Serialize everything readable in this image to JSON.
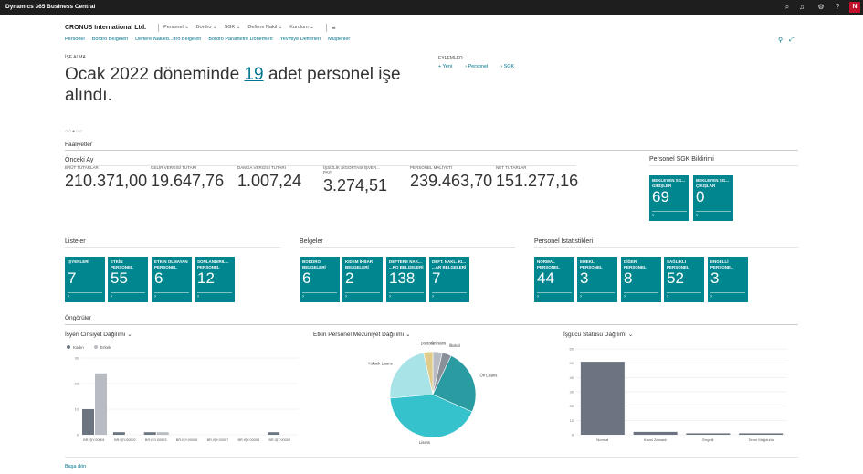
{
  "app": {
    "title": "Dynamics 365 Business Central",
    "avatar": "N"
  },
  "nav": {
    "company": "CRONUS International Ltd.",
    "items": [
      "Personel",
      "Bordro",
      "SGK",
      "Deftere Nakil",
      "Kurulum"
    ]
  },
  "links": [
    "Personel",
    "Bordro Belgeleri",
    "Deftere Nakled...dro Belgeleri",
    "Bordro Parametre Dönemleri",
    "Yevmiye Defterleri",
    "Müşteriler"
  ],
  "headline": {
    "caption": "İŞE ALMA",
    "pre": "Ocak 2022 döneminde ",
    "number": "19",
    "post": " adet personel işe alındı."
  },
  "actions": {
    "caption": "EYLEMLER",
    "items": [
      "+ Yeni",
      "› Personel",
      "› SGK"
    ]
  },
  "carousel_dots": "○○●○○",
  "faaliyetler": {
    "title": "Faaliyetler",
    "prev_title": "Önceki Ay",
    "cues": [
      {
        "label": "BRÜT TUTARLAR",
        "value": "210.371,00"
      },
      {
        "label": "GELİR VERGİSİ TUTARI",
        "value": "19.647,76"
      },
      {
        "label": "DAMGA VERGİSİ TUTARI",
        "value": "1.007,24"
      },
      {
        "label": "İŞSİZLİK SİGORTASI İŞVER... PAYI",
        "value": "3.274,51"
      },
      {
        "label": "PERSONEL MALİYETİ",
        "value": "239.463,70"
      },
      {
        "label": "NET TUTARLAR",
        "value": "151.277,16"
      }
    ],
    "sgk_title": "Personel SGK Bildirimi",
    "sgk_tiles": [
      {
        "label": "BEKLEYEN SG... GİRİŞLER",
        "value": "69"
      },
      {
        "label": "BEKLEYEN SG... ÇIKIŞLAR",
        "value": "0"
      }
    ]
  },
  "groups": {
    "listeler": {
      "title": "Listeler",
      "tiles": [
        {
          "label": "İŞYERLERİ",
          "value": "7"
        },
        {
          "label": "ETKİN PERSONEL",
          "value": "55"
        },
        {
          "label": "ETKİN OLMAYAN PERSONEL",
          "value": "6"
        },
        {
          "label": "SONLANDIRIL... PERSONEL",
          "value": "12"
        }
      ]
    },
    "belgeler": {
      "title": "Belgeler",
      "tiles": [
        {
          "label": "BORDRO BELGELERİ",
          "value": "6"
        },
        {
          "label": "KIDEM İHBAR BELGELERİ",
          "value": "2"
        },
        {
          "label": "DEFTERE NAK... ...RO BELGELERİ",
          "value": "138"
        },
        {
          "label": "DEFT. NAKL. KI... ...AR BELGELERİ",
          "value": "7"
        }
      ]
    },
    "istatistik": {
      "title": "Personel İstatistikleri",
      "tiles": [
        {
          "label": "NORMAL PERSONEL",
          "value": "44"
        },
        {
          "label": "EMEKLİ PERSONEL",
          "value": "3"
        },
        {
          "label": "DİĞER PERSONEL",
          "value": "8"
        },
        {
          "label": "SAĞLIKLI PERSONEL",
          "value": "52"
        },
        {
          "label": "ENGELLİ PERSONEL",
          "value": "3"
        }
      ]
    }
  },
  "ongoruler": {
    "title": "Öngörüler"
  },
  "chart_data": [
    {
      "type": "bar",
      "title": "İşyeri Cinsiyet Dağılımı",
      "categories": [
        "BR.İŞY.00001",
        "BR.İŞY.00002",
        "BR.İŞY.00003",
        "BR.İŞY.00006",
        "BR.İŞY.00007",
        "BR.İŞY.00008",
        "BR.İŞY.00009"
      ],
      "series": [
        {
          "name": "Kadın",
          "color": "#6b7480",
          "values": [
            10,
            1,
            1,
            0,
            0,
            0,
            1
          ]
        },
        {
          "name": "Erkek",
          "color": "#b8bcc2",
          "values": [
            24,
            0,
            1,
            0,
            0,
            0,
            0
          ]
        }
      ],
      "yticks": [
        0,
        10,
        20,
        30
      ],
      "ylim": [
        0,
        30
      ],
      "legend": "top-left"
    },
    {
      "type": "pie",
      "title": "Etkin Personel Mezuniyet Dağılımı",
      "labels": [
        "Önlisans",
        "İlkokul",
        "Ön Lisans",
        "Lisans",
        "Yüksek Lisans",
        "Doktora"
      ],
      "values": [
        2,
        2,
        14,
        24,
        13,
        2
      ],
      "colors": [
        "#b8bcc2",
        "#8a9099",
        "#2a9ba0",
        "#35c2cc",
        "#a8e3e8",
        "#e0cc8a"
      ]
    },
    {
      "type": "bar",
      "title": "İşgücü Statüsü Dağılımı",
      "categories": [
        "Normal",
        "Kısmi Zamanlı",
        "Engelli",
        "Tarım Mağdurlu"
      ],
      "values": [
        51,
        2,
        1,
        1
      ],
      "color": "#6b7480",
      "yticks": [
        0,
        10,
        20,
        30,
        40,
        50,
        60
      ],
      "ylim": [
        0,
        60
      ]
    }
  ],
  "footer": {
    "back": "Başa dön"
  }
}
